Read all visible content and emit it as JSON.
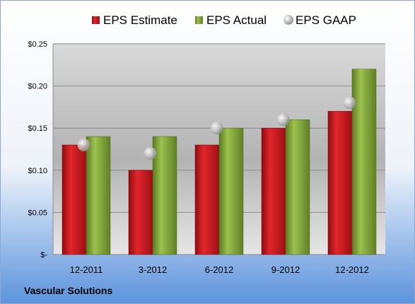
{
  "chart_data": {
    "type": "bar",
    "categories": [
      "12-2011",
      "3-2012",
      "6-2012",
      "9-2012",
      "12-2012"
    ],
    "series": [
      {
        "name": "EPS Estimate",
        "kind": "bar",
        "color": "#C0151C",
        "values": [
          0.13,
          0.1,
          0.13,
          0.15,
          0.17
        ]
      },
      {
        "name": "EPS Actual",
        "kind": "bar",
        "color": "#7FA03A",
        "values": [
          0.14,
          0.14,
          0.15,
          0.16,
          0.22
        ]
      },
      {
        "name": "EPS GAAP",
        "kind": "marker",
        "color": "#B8B8B8",
        "values": [
          0.13,
          0.12,
          0.15,
          0.16,
          0.18
        ]
      }
    ],
    "yticks": [
      "$-",
      "$0.05",
      "$0.10",
      "$0.15",
      "$0.20",
      "$0.25"
    ],
    "ylim": [
      0,
      0.25
    ],
    "grid": true,
    "legend_position": "top"
  },
  "footer": {
    "company": "Vascular Solutions"
  }
}
